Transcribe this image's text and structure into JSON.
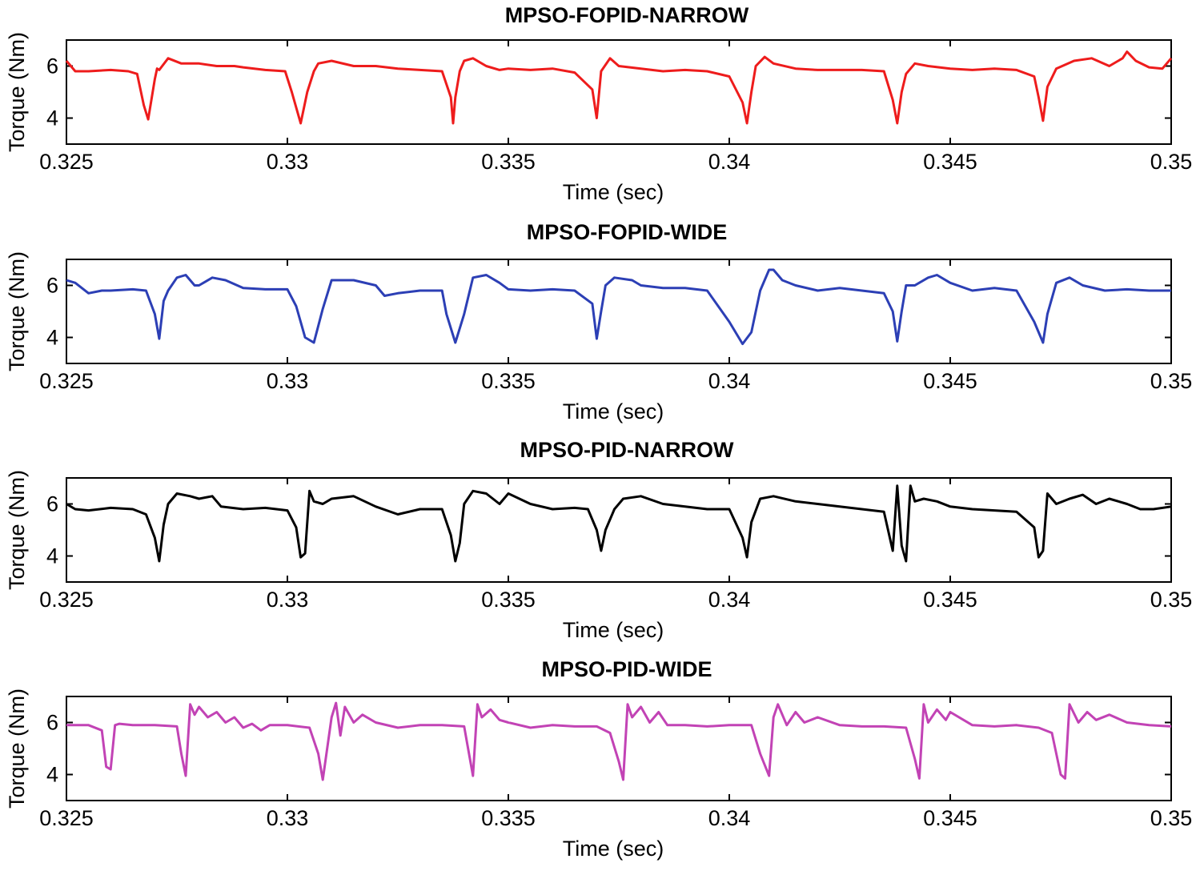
{
  "chart_data": [
    {
      "type": "line",
      "title": "MPSO-FOPID-NARROW",
      "xlabel": "Time (sec)",
      "ylabel": "Torque (Nm)",
      "xlim": [
        0.325,
        0.35
      ],
      "ylim": [
        3,
        7
      ],
      "xticks": [
        0.325,
        0.33,
        0.335,
        0.34,
        0.345,
        0.35
      ],
      "xtick_labels": [
        "0.325",
        "0.33",
        "0.335",
        "0.34",
        "0.345",
        "0.35"
      ],
      "yticks": [
        4,
        6
      ],
      "ytick_labels": [
        "4",
        "6"
      ],
      "grid": false,
      "series": [
        {
          "name": "MPSO-FOPID-NARROW",
          "color": "#ee1c1c",
          "x": [
            0.325,
            0.3252,
            0.3255,
            0.326,
            0.3264,
            0.3266,
            0.32675,
            0.32685,
            0.327,
            0.32705,
            0.3271,
            0.3273,
            0.3276,
            0.328,
            0.3284,
            0.3288,
            0.329,
            0.3295,
            0.32995,
            0.3301,
            0.3303,
            0.33045,
            0.3306,
            0.3307,
            0.331,
            0.3315,
            0.332,
            0.3325,
            0.333,
            0.3335,
            0.3337,
            0.33375,
            0.3338,
            0.3339,
            0.334,
            0.3342,
            0.3345,
            0.3348,
            0.335,
            0.3355,
            0.336,
            0.3365,
            0.3369,
            0.337,
            0.3371,
            0.3373,
            0.3375,
            0.338,
            0.3385,
            0.339,
            0.3395,
            0.34,
            0.3403,
            0.3404,
            0.3405,
            0.3406,
            0.3408,
            0.341,
            0.3415,
            0.342,
            0.3425,
            0.343,
            0.3435,
            0.3437,
            0.3438,
            0.3439,
            0.344,
            0.3442,
            0.3445,
            0.345,
            0.3455,
            0.346,
            0.3465,
            0.3469,
            0.347,
            0.3471,
            0.3472,
            0.3474,
            0.3478,
            0.3482,
            0.3486,
            0.3489,
            0.349,
            0.3492,
            0.3495,
            0.3498,
            0.35
          ],
          "y": [
            6.2,
            5.8,
            5.8,
            5.85,
            5.8,
            5.7,
            4.5,
            3.95,
            5.5,
            5.9,
            5.85,
            6.3,
            6.1,
            6.1,
            6.0,
            6.0,
            5.95,
            5.85,
            5.8,
            5.0,
            3.8,
            5.0,
            5.8,
            6.1,
            6.2,
            6.0,
            6.0,
            5.9,
            5.85,
            5.8,
            4.8,
            3.8,
            4.8,
            5.8,
            6.2,
            6.3,
            6.0,
            5.85,
            5.9,
            5.85,
            5.9,
            5.75,
            5.1,
            4.0,
            5.8,
            6.3,
            6.0,
            5.9,
            5.8,
            5.85,
            5.8,
            5.6,
            4.6,
            3.8,
            5.0,
            6.0,
            6.35,
            6.1,
            5.9,
            5.85,
            5.85,
            5.85,
            5.8,
            4.7,
            3.8,
            5.0,
            5.7,
            6.1,
            6.0,
            5.9,
            5.85,
            5.9,
            5.85,
            5.6,
            4.8,
            3.9,
            5.2,
            5.9,
            6.2,
            6.3,
            6.0,
            6.3,
            6.55,
            6.2,
            5.95,
            5.9,
            6.3
          ]
        }
      ]
    },
    {
      "type": "line",
      "title": "MPSO-FOPID-WIDE",
      "xlabel": "Time (sec)",
      "ylabel": "Torque (Nm)",
      "xlim": [
        0.325,
        0.35
      ],
      "ylim": [
        3,
        7
      ],
      "xticks": [
        0.325,
        0.33,
        0.335,
        0.34,
        0.345,
        0.35
      ],
      "xtick_labels": [
        "0.325",
        "0.33",
        "0.335",
        "0.34",
        "0.345",
        "0.35"
      ],
      "yticks": [
        4,
        6
      ],
      "ytick_labels": [
        "4",
        "6"
      ],
      "grid": false,
      "series": [
        {
          "name": "MPSO-FOPID-WIDE",
          "color": "#2c3fb5",
          "x": [
            0.325,
            0.3252,
            0.3255,
            0.3258,
            0.326,
            0.3265,
            0.3268,
            0.327,
            0.3271,
            0.3272,
            0.3273,
            0.3275,
            0.3277,
            0.3279,
            0.328,
            0.3283,
            0.3286,
            0.329,
            0.3295,
            0.33,
            0.3302,
            0.3304,
            0.3306,
            0.3308,
            0.331,
            0.3315,
            0.332,
            0.3322,
            0.3325,
            0.333,
            0.3335,
            0.3336,
            0.3338,
            0.334,
            0.3342,
            0.3345,
            0.3348,
            0.335,
            0.3355,
            0.336,
            0.3365,
            0.3369,
            0.337,
            0.3371,
            0.3372,
            0.3374,
            0.3378,
            0.338,
            0.3385,
            0.339,
            0.3395,
            0.34,
            0.3403,
            0.3405,
            0.3407,
            0.3409,
            0.341,
            0.3412,
            0.3415,
            0.342,
            0.3425,
            0.343,
            0.3435,
            0.3437,
            0.3438,
            0.3439,
            0.344,
            0.3442,
            0.3445,
            0.3447,
            0.345,
            0.3455,
            0.346,
            0.3465,
            0.3469,
            0.3471,
            0.3472,
            0.3474,
            0.3477,
            0.348,
            0.3485,
            0.349,
            0.3495,
            0.35
          ],
          "y": [
            6.2,
            6.1,
            5.7,
            5.8,
            5.8,
            5.85,
            5.8,
            4.9,
            3.95,
            5.4,
            5.8,
            6.3,
            6.4,
            6.0,
            6.0,
            6.3,
            6.2,
            5.9,
            5.85,
            5.85,
            5.2,
            4.0,
            3.8,
            5.1,
            6.2,
            6.2,
            6.0,
            5.6,
            5.7,
            5.8,
            5.8,
            4.9,
            3.8,
            4.9,
            6.3,
            6.4,
            6.1,
            5.85,
            5.8,
            5.85,
            5.8,
            5.3,
            3.95,
            5.0,
            6.0,
            6.3,
            6.2,
            6.0,
            5.9,
            5.9,
            5.8,
            4.6,
            3.75,
            4.2,
            5.8,
            6.6,
            6.6,
            6.2,
            6.0,
            5.8,
            5.9,
            5.8,
            5.7,
            5.0,
            3.85,
            5.0,
            6.0,
            6.0,
            6.3,
            6.4,
            6.1,
            5.8,
            5.9,
            5.8,
            4.6,
            3.8,
            4.9,
            6.1,
            6.3,
            6.0,
            5.8,
            5.85,
            5.8,
            5.8
          ]
        }
      ]
    },
    {
      "type": "line",
      "title": "MPSO-PID-NARROW",
      "xlabel": "Time (sec)",
      "ylabel": "Torque (Nm)",
      "xlim": [
        0.325,
        0.35
      ],
      "ylim": [
        3,
        7
      ],
      "xticks": [
        0.325,
        0.33,
        0.335,
        0.34,
        0.345,
        0.35
      ],
      "xtick_labels": [
        "0.325",
        "0.33",
        "0.335",
        "0.34",
        "0.345",
        "0.35"
      ],
      "yticks": [
        4,
        6
      ],
      "ytick_labels": [
        "4",
        "6"
      ],
      "grid": false,
      "series": [
        {
          "name": "MPSO-PID-NARROW",
          "color": "#000000",
          "x": [
            0.325,
            0.3252,
            0.3255,
            0.326,
            0.3265,
            0.3268,
            0.327,
            0.3271,
            0.3272,
            0.3273,
            0.3275,
            0.3278,
            0.328,
            0.3283,
            0.3285,
            0.329,
            0.3295,
            0.33,
            0.3302,
            0.3303,
            0.3304,
            0.3305,
            0.3306,
            0.3308,
            0.331,
            0.3315,
            0.332,
            0.3325,
            0.333,
            0.3335,
            0.3337,
            0.3338,
            0.3339,
            0.334,
            0.3342,
            0.3345,
            0.3348,
            0.335,
            0.3355,
            0.336,
            0.3365,
            0.3368,
            0.337,
            0.3371,
            0.3372,
            0.3374,
            0.3376,
            0.338,
            0.3385,
            0.339,
            0.3395,
            0.34,
            0.3403,
            0.3404,
            0.3405,
            0.3407,
            0.341,
            0.3415,
            0.342,
            0.3425,
            0.343,
            0.3435,
            0.3437,
            0.3438,
            0.3439,
            0.344,
            0.3441,
            0.3442,
            0.3444,
            0.3447,
            0.345,
            0.3455,
            0.346,
            0.3465,
            0.3469,
            0.347,
            0.3471,
            0.3472,
            0.3474,
            0.3477,
            0.348,
            0.3483,
            0.3486,
            0.349,
            0.3493,
            0.3496,
            0.35
          ],
          "y": [
            6.0,
            5.8,
            5.75,
            5.85,
            5.8,
            5.6,
            4.7,
            3.8,
            5.2,
            6.0,
            6.4,
            6.3,
            6.2,
            6.3,
            5.9,
            5.8,
            5.85,
            5.75,
            5.1,
            3.95,
            4.1,
            6.5,
            6.1,
            6.0,
            6.2,
            6.3,
            5.9,
            5.6,
            5.8,
            5.8,
            4.8,
            3.8,
            4.5,
            6.0,
            6.5,
            6.4,
            6.0,
            6.4,
            6.0,
            5.8,
            5.85,
            5.8,
            5.0,
            4.2,
            5.0,
            5.8,
            6.2,
            6.3,
            6.0,
            5.9,
            5.8,
            5.8,
            4.7,
            3.95,
            5.3,
            6.2,
            6.3,
            6.1,
            6.0,
            5.9,
            5.8,
            5.7,
            4.2,
            6.7,
            4.4,
            3.8,
            6.7,
            6.1,
            6.2,
            6.1,
            5.9,
            5.8,
            5.75,
            5.7,
            5.1,
            3.95,
            4.2,
            6.4,
            6.0,
            6.2,
            6.35,
            6.0,
            6.2,
            6.0,
            5.8,
            5.8,
            5.9
          ]
        }
      ]
    },
    {
      "type": "line",
      "title": "MPSO-PID-WIDE",
      "xlabel": "Time (sec)",
      "ylabel": "Torque (Nm)",
      "xlim": [
        0.325,
        0.35
      ],
      "ylim": [
        3,
        7
      ],
      "xticks": [
        0.325,
        0.33,
        0.335,
        0.34,
        0.345,
        0.35
      ],
      "xtick_labels": [
        "0.325",
        "0.33",
        "0.335",
        "0.34",
        "0.345",
        "0.35"
      ],
      "yticks": [
        4,
        6
      ],
      "ytick_labels": [
        "4",
        "6"
      ],
      "grid": false,
      "series": [
        {
          "name": "MPSO-PID-WIDE",
          "color": "#c243b5",
          "x": [
            0.325,
            0.3255,
            0.3258,
            0.3259,
            0.326,
            0.3261,
            0.3262,
            0.3265,
            0.327,
            0.3275,
            0.3276,
            0.3277,
            0.3278,
            0.3279,
            0.328,
            0.3282,
            0.3284,
            0.3286,
            0.3288,
            0.329,
            0.3292,
            0.3294,
            0.3296,
            0.33,
            0.3305,
            0.3307,
            0.3308,
            0.331,
            0.3311,
            0.3312,
            0.3313,
            0.3315,
            0.3317,
            0.332,
            0.3325,
            0.333,
            0.3335,
            0.334,
            0.3341,
            0.3342,
            0.3343,
            0.3344,
            0.3346,
            0.3348,
            0.335,
            0.3355,
            0.336,
            0.3365,
            0.337,
            0.3373,
            0.3375,
            0.3376,
            0.3377,
            0.3378,
            0.338,
            0.3382,
            0.3384,
            0.3386,
            0.339,
            0.3395,
            0.34,
            0.3405,
            0.3407,
            0.3409,
            0.341,
            0.3411,
            0.3413,
            0.3415,
            0.3417,
            0.342,
            0.3425,
            0.343,
            0.3435,
            0.344,
            0.3442,
            0.3443,
            0.3444,
            0.3445,
            0.3447,
            0.3449,
            0.345,
            0.3455,
            0.346,
            0.3465,
            0.347,
            0.3473,
            0.3475,
            0.3476,
            0.3477,
            0.3479,
            0.3481,
            0.3483,
            0.3486,
            0.349,
            0.3495,
            0.35
          ],
          "y": [
            5.9,
            5.9,
            5.7,
            4.3,
            4.2,
            5.9,
            5.95,
            5.9,
            5.9,
            5.85,
            4.8,
            3.95,
            6.7,
            6.3,
            6.6,
            6.2,
            6.4,
            6.0,
            6.2,
            5.8,
            5.95,
            5.7,
            5.9,
            5.9,
            5.8,
            4.8,
            3.8,
            6.2,
            6.75,
            5.5,
            6.6,
            6.0,
            6.3,
            6.0,
            5.8,
            5.9,
            5.9,
            5.85,
            4.9,
            3.95,
            6.7,
            6.2,
            6.5,
            6.1,
            6.0,
            5.8,
            5.9,
            5.85,
            5.85,
            5.6,
            4.5,
            3.8,
            6.7,
            6.2,
            6.6,
            6.0,
            6.4,
            5.9,
            5.9,
            5.85,
            5.9,
            5.9,
            4.8,
            3.95,
            6.2,
            6.7,
            5.9,
            6.4,
            6.0,
            6.2,
            5.9,
            5.85,
            5.85,
            5.8,
            4.6,
            3.85,
            6.7,
            6.0,
            6.5,
            6.1,
            6.4,
            5.9,
            5.85,
            5.9,
            5.8,
            5.6,
            4.0,
            3.85,
            6.7,
            6.0,
            6.4,
            6.1,
            6.3,
            6.0,
            5.9,
            5.85
          ]
        }
      ]
    }
  ]
}
